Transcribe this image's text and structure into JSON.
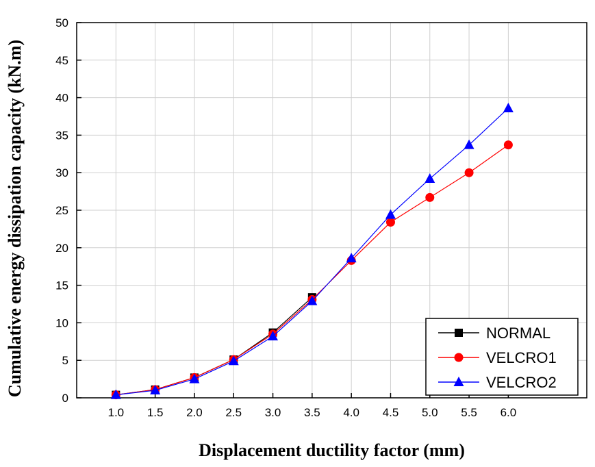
{
  "chart_data": {
    "type": "line",
    "xlabel": "Displacement ductility factor (mm)",
    "ylabel": "Cumulative energy dissipation capacity (kN.m)",
    "x": [
      1.0,
      1.5,
      2.0,
      2.5,
      3.0,
      3.5,
      4.0,
      4.5,
      5.0,
      5.5,
      6.0
    ],
    "x_tick_labels": [
      "1.0",
      "1.5",
      "2.0",
      "2.5",
      "3.0",
      "3.5",
      "4.0",
      "4.5",
      "5.0",
      "5.5",
      "6.0"
    ],
    "y_ticks": [
      0,
      5,
      10,
      15,
      20,
      25,
      30,
      35,
      40,
      45,
      50
    ],
    "y_tick_labels": [
      "0",
      "5",
      "10",
      "15",
      "20",
      "25",
      "30",
      "35",
      "40",
      "45",
      "50"
    ],
    "xlim": [
      0.5,
      7.0
    ],
    "ylim": [
      0,
      50
    ],
    "grid": true,
    "legend_position": "bottom-right",
    "series": [
      {
        "name": "NORMAL",
        "color": "#000000",
        "marker": "square",
        "x": [
          1.0,
          1.5,
          2.0,
          2.5,
          3.0,
          3.5
        ],
        "values": [
          0.4,
          1.1,
          2.7,
          5.1,
          8.7,
          13.4
        ]
      },
      {
        "name": "VELCRO1",
        "color": "#ff0000",
        "marker": "circle",
        "x": [
          1.0,
          1.5,
          2.0,
          2.5,
          3.0,
          3.5,
          4.0,
          4.5,
          5.0,
          5.5,
          6.0
        ],
        "values": [
          0.4,
          1.1,
          2.7,
          5.1,
          8.5,
          13.1,
          18.3,
          23.4,
          26.7,
          30.0,
          33.7
        ]
      },
      {
        "name": "VELCRO2",
        "color": "#0000ff",
        "marker": "triangle",
        "x": [
          1.0,
          1.5,
          2.0,
          2.5,
          3.0,
          3.5,
          4.0,
          4.5,
          5.0,
          5.5,
          6.0
        ],
        "values": [
          0.4,
          1.0,
          2.5,
          4.9,
          8.2,
          12.9,
          18.6,
          24.4,
          29.2,
          33.7,
          38.6
        ]
      }
    ]
  }
}
